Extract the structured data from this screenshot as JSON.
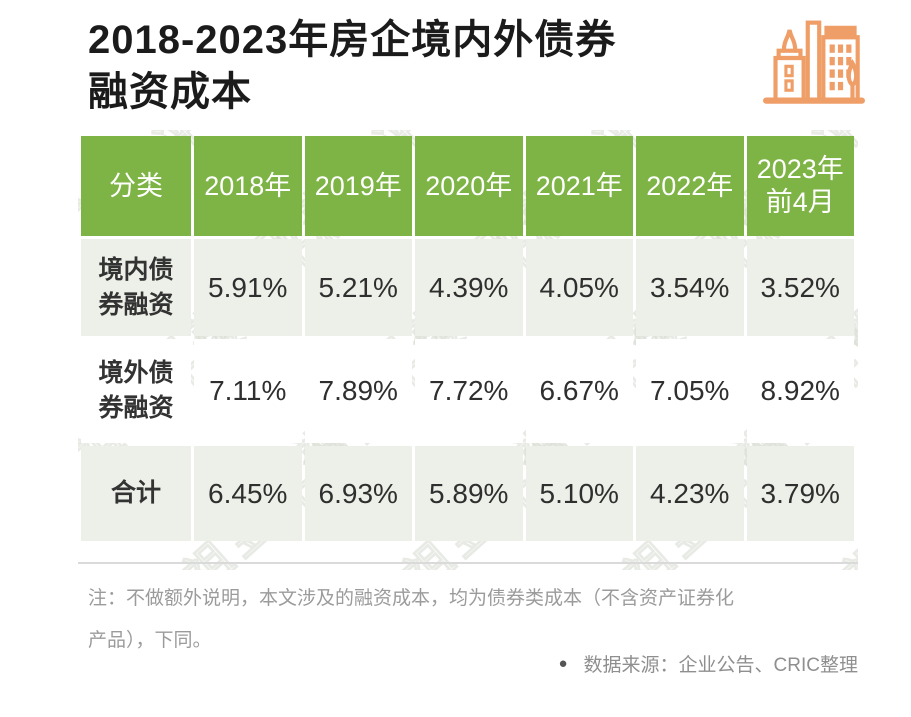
{
  "title": {
    "line1": "2018-2023年房企境内外债券",
    "line2": "融资成本"
  },
  "watermark": "丁祖昱评楼市",
  "chart_data": {
    "type": "table",
    "title": "2018-2023年房企境内外债券融资成本",
    "columns": [
      "分类",
      "2018年",
      "2019年",
      "2020年",
      "2021年",
      "2022年",
      "2023年\n前4月"
    ],
    "rows": [
      {
        "label": "境内债\n券融资",
        "values": [
          "5.91%",
          "5.21%",
          "4.39%",
          "4.05%",
          "3.54%",
          "3.52%"
        ]
      },
      {
        "label": "境外债\n券融资",
        "values": [
          "7.11%",
          "7.89%",
          "7.72%",
          "6.67%",
          "7.05%",
          "8.92%"
        ]
      },
      {
        "label": "合计",
        "values": [
          "6.45%",
          "6.93%",
          "5.89%",
          "5.10%",
          "4.23%",
          "3.79%"
        ]
      }
    ],
    "units": "percent",
    "legend": null,
    "grid": "white 3px gaps between cells"
  },
  "footer": {
    "note_lines": [
      "注：不做额外说明，本文涉及的融资成本，均为债券类成本（不含资产证券化",
      "产品），下同。"
    ],
    "source_bullet": "●",
    "source": "数据来源：企业公告、CRIC整理"
  },
  "colors": {
    "header_green": "#7db445",
    "row_light": "#edf0e8",
    "icon_orange": "#ef9e68",
    "divider_gray": "#dadada",
    "title_black": "#1b1b1b",
    "note_gray": "#9b9b9b"
  }
}
